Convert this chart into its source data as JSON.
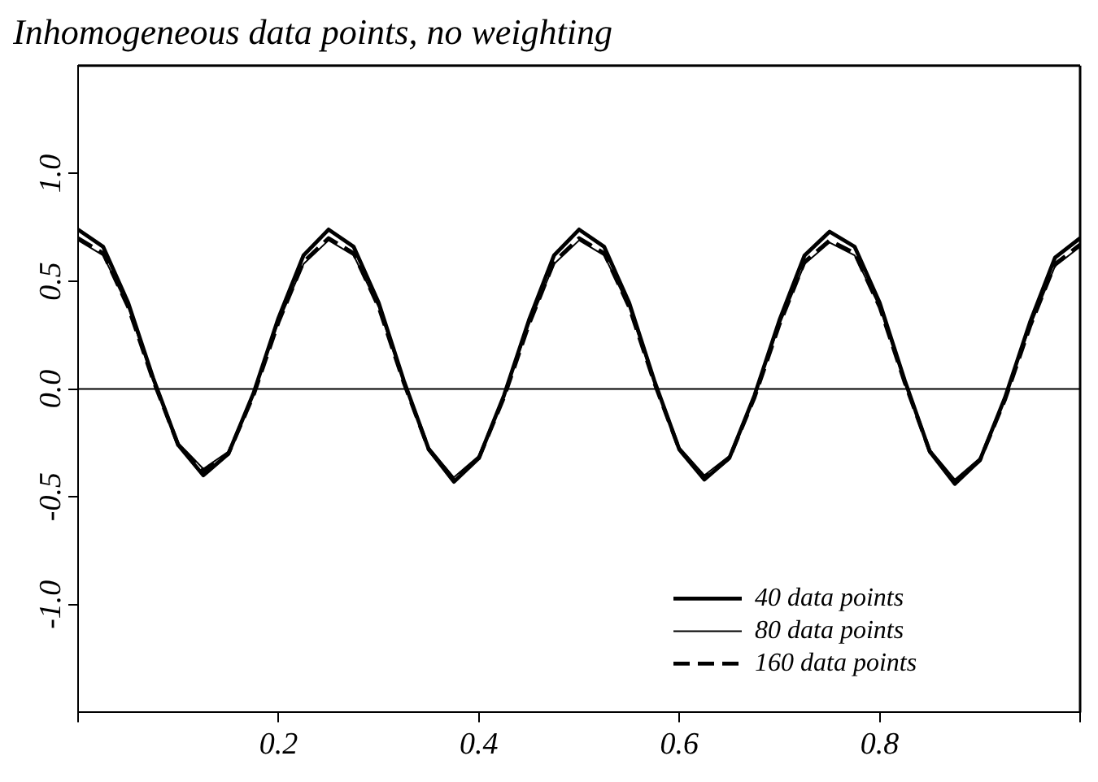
{
  "chart_data": {
    "type": "line",
    "title": "Inhomogeneous data points, no weighting",
    "xlim": [
      0,
      1
    ],
    "xticks": [
      {
        "value": 0,
        "label": null
      },
      0.2,
      0.4,
      0.6,
      0.8,
      {
        "value": 1,
        "label": null
      }
    ],
    "ylim": [
      -1.5,
      1.5
    ],
    "yticks": [
      {
        "value": -1,
        "label": "-1.0"
      },
      -0.5,
      {
        "value": 0,
        "label": "0.0"
      },
      0.5,
      {
        "value": 1,
        "label": "1.0"
      }
    ],
    "x": [
      0,
      0.025,
      0.05,
      0.075,
      0.1,
      0.125,
      0.15,
      0.175,
      0.2,
      0.225,
      0.25,
      0.275,
      0.3,
      0.325,
      0.35,
      0.375,
      0.4,
      0.425,
      0.45,
      0.475,
      0.5,
      0.525,
      0.55,
      0.575,
      0.6,
      0.625,
      0.65,
      0.675,
      0.7,
      0.725,
      0.75,
      0.775,
      0.8,
      0.825,
      0.85,
      0.875,
      0.9,
      0.925,
      0.95,
      0.975,
      1
    ],
    "series": [
      {
        "name": "40 data points",
        "color": "#000000",
        "line_style": "solid",
        "values": [
          0.74,
          0.66,
          0.4,
          0.05,
          -0.26,
          -0.4,
          -0.3,
          -0.02,
          0.33,
          0.62,
          0.74,
          0.66,
          0.4,
          0.04,
          -0.28,
          -0.43,
          -0.32,
          -0.03,
          0.32,
          0.62,
          0.74,
          0.66,
          0.4,
          0.04,
          -0.28,
          -0.42,
          -0.32,
          -0.03,
          0.32,
          0.62,
          0.73,
          0.66,
          0.4,
          0.04,
          -0.29,
          -0.44,
          -0.33,
          -0.04,
          0.31,
          0.61,
          0.7
        ]
      },
      {
        "name": "80 data points",
        "color": "#000000",
        "line_style": "solid",
        "values": [
          0.69,
          0.62,
          0.38,
          0.04,
          -0.25,
          -0.37,
          -0.29,
          -0.02,
          0.31,
          0.58,
          0.69,
          0.62,
          0.38,
          0.03,
          -0.27,
          -0.41,
          -0.31,
          -0.03,
          0.3,
          0.58,
          0.69,
          0.62,
          0.38,
          0.03,
          -0.27,
          -0.4,
          -0.31,
          -0.03,
          0.3,
          0.58,
          0.68,
          0.62,
          0.38,
          0.03,
          -0.28,
          -0.42,
          -0.32,
          -0.04,
          0.29,
          0.57,
          0.66
        ]
      },
      {
        "name": "160 data points",
        "color": "#000000",
        "line_style": "dashed",
        "values": [
          0.7,
          0.63,
          0.38,
          0.04,
          -0.26,
          -0.38,
          -0.3,
          -0.03,
          0.31,
          0.59,
          0.7,
          0.63,
          0.38,
          0.03,
          -0.28,
          -0.42,
          -0.32,
          -0.04,
          0.3,
          0.59,
          0.7,
          0.63,
          0.38,
          0.03,
          -0.28,
          -0.41,
          -0.32,
          -0.04,
          0.3,
          0.59,
          0.69,
          0.63,
          0.38,
          0.03,
          -0.29,
          -0.43,
          -0.33,
          -0.05,
          0.29,
          0.58,
          0.67
        ]
      }
    ],
    "ref_lines": [
      {
        "axis": "y",
        "value": 0,
        "color": "#000000"
      }
    ],
    "legend": "bottom right",
    "grid": false,
    "marker": "none"
  }
}
